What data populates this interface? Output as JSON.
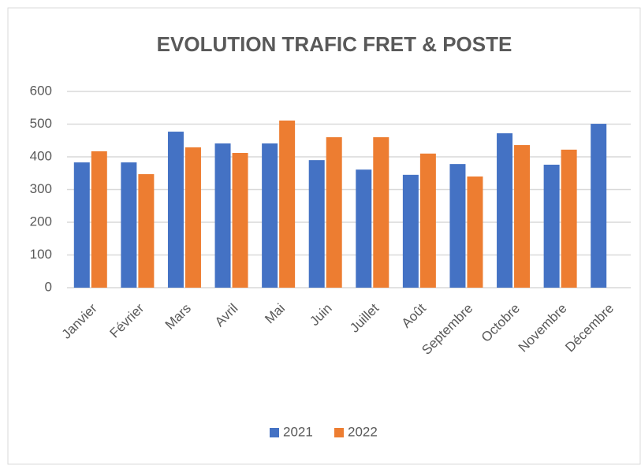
{
  "chart_data": {
    "type": "bar",
    "title": "EVOLUTION TRAFIC FRET & POSTE",
    "categories": [
      "Janvier",
      "Février",
      "Mars",
      "Avril",
      "Mai",
      "Juin",
      "Juillet",
      "Août",
      "Septembre",
      "Octobre",
      "Novembre",
      "Décembre"
    ],
    "series": [
      {
        "name": "2021",
        "color": "#4472c4",
        "values": [
          383,
          383,
          477,
          441,
          441,
          390,
          361,
          345,
          378,
          472,
          376,
          501
        ]
      },
      {
        "name": "2022",
        "color": "#ed7d31",
        "values": [
          417,
          347,
          429,
          412,
          511,
          460,
          460,
          410,
          340,
          436,
          422,
          null
        ]
      }
    ],
    "ylim": [
      0,
      600
    ],
    "yticks": [
      0,
      100,
      200,
      300,
      400,
      500,
      600
    ],
    "grid": true,
    "legend": "bottom"
  }
}
